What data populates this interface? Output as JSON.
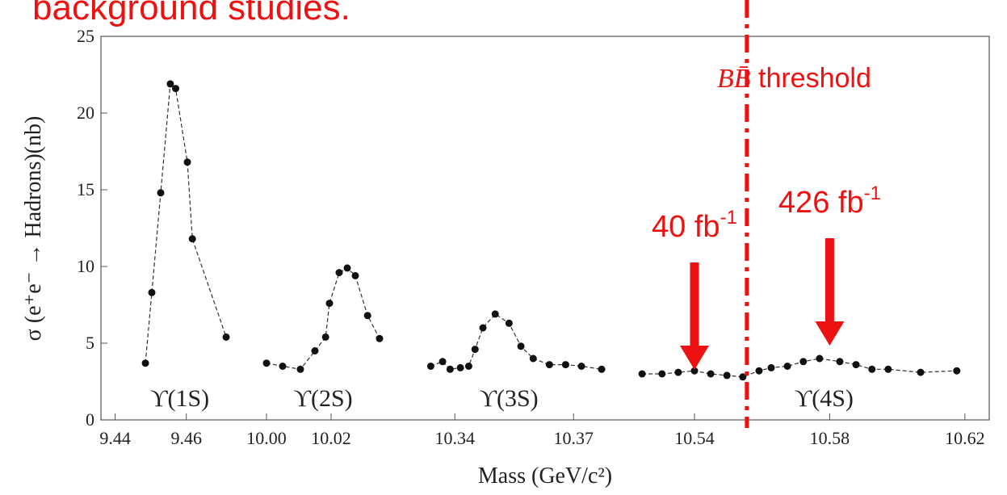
{
  "chart_data": {
    "type": "scatter",
    "title": "background studies.",
    "y_label": "σ (e⁺e⁻ → Hadrons)(nb)",
    "x_label": "Mass (GeV/c²)",
    "ylim": [
      0,
      25
    ],
    "yticks": [
      0,
      5,
      10,
      15,
      20,
      25
    ],
    "color": "#111111",
    "segments": [
      {
        "label": "ϒ(1S)",
        "xlim": [
          9.436,
          9.478
        ],
        "xticks": [
          9.44,
          9.46
        ],
        "x": [
          9.4485,
          9.4503,
          9.4528,
          9.4555,
          9.457,
          9.4603,
          9.4617,
          9.4712
        ],
        "values": [
          3.7,
          8.3,
          14.8,
          21.9,
          21.6,
          16.8,
          11.8,
          5.4
        ]
      },
      {
        "label": "ϒ(2S)",
        "xlim": [
          9.995,
          10.0375
        ],
        "xticks": [
          {
            "value": 10,
            "label": "10.00"
          },
          10.02
        ],
        "x": [
          10.0,
          10.005,
          10.0105,
          10.015,
          10.0183,
          10.0195,
          10.0225,
          10.025,
          10.0275,
          10.0313,
          10.035
        ],
        "values": [
          3.7,
          3.5,
          3.3,
          4.5,
          5.4,
          7.6,
          9.6,
          9.9,
          9.4,
          6.8,
          5.3
        ]
      },
      {
        "label": "ϒ(3S)",
        "xlim": [
          10.323,
          10.3822
        ],
        "xticks": [
          10.34,
          10.37
        ],
        "x": [
          10.3339,
          10.3369,
          10.3388,
          10.3414,
          10.3435,
          10.3451,
          10.3471,
          10.3502,
          10.3537,
          10.3567,
          10.3598,
          10.3639,
          10.368,
          10.372,
          10.3771
        ],
        "values": [
          3.5,
          3.8,
          3.3,
          3.4,
          3.5,
          4.6,
          6.0,
          6.9,
          6.3,
          4.8,
          4.0,
          3.6,
          3.6,
          3.5,
          3.3
        ]
      },
      {
        "label": "ϒ(4S)",
        "xlim": [
          10.5185,
          10.6272
        ],
        "xticks": [
          10.54,
          10.58,
          10.62
        ],
        "x": [
          10.5245,
          10.5304,
          10.5352,
          10.54,
          10.5448,
          10.5496,
          10.5543,
          10.5591,
          10.5627,
          10.5675,
          10.5722,
          10.577,
          10.583,
          10.5878,
          10.5925,
          10.5973,
          10.6069,
          10.6176
        ],
        "values": [
          3.0,
          3.0,
          3.1,
          3.2,
          3.0,
          2.9,
          2.8,
          3.2,
          3.4,
          3.5,
          3.8,
          4.0,
          3.8,
          3.6,
          3.3,
          3.3,
          3.1,
          3.2
        ]
      }
    ],
    "threshold": {
      "x": 10.5555,
      "symbol": "BB̄",
      "label": "threshold",
      "color": "#ee1111"
    },
    "annotations": [
      {
        "text": "40 fb",
        "sup": "-1",
        "x": 10.54
      },
      {
        "text": "426 fb",
        "sup": "-1",
        "x": 10.58
      }
    ]
  }
}
